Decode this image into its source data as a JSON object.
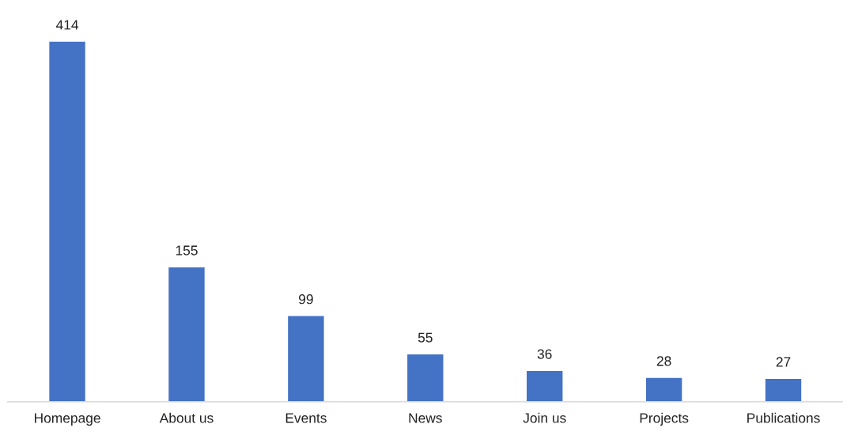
{
  "chart_data": {
    "type": "bar",
    "categories": [
      "Homepage",
      "About us",
      "Events",
      "News",
      "Join us",
      "Projects",
      "Publications"
    ],
    "values": [
      414,
      155,
      99,
      55,
      36,
      28,
      27
    ],
    "color": "#4472c4",
    "data_labels": true,
    "grid": false,
    "legend": false
  }
}
